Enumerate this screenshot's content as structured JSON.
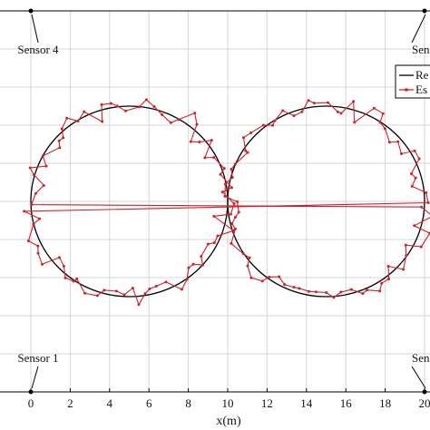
{
  "chart_data": {
    "type": "line",
    "title": "",
    "xlabel": "x(m)",
    "ylabel": "",
    "xlim": [
      -1.5,
      20
    ],
    "ylim": [
      -10,
      10
    ],
    "x_ticks": [
      0,
      2,
      4,
      6,
      8,
      10,
      12,
      14,
      16,
      18,
      20
    ],
    "x_tick_labels": [
      "0",
      "2",
      "4",
      "6",
      "8",
      "10",
      "12",
      "14",
      "16",
      "18",
      "20"
    ],
    "y_grid": [
      -10,
      -8,
      -6,
      -4,
      -2,
      0,
      2,
      4,
      6,
      8,
      10
    ],
    "grid": true,
    "legend_position": "top-right",
    "legend": [
      "Re",
      "Es"
    ],
    "colors": {
      "reference": "#000000",
      "estimate": "#d0202a",
      "grid": "#d6d6d6",
      "axis": "#000000"
    },
    "series": [
      {
        "name": "Re",
        "kind": "figure-eight (two circles)",
        "circles": [
          {
            "center": [
              5,
              0
            ],
            "radius": 5
          },
          {
            "center": [
              15,
              0
            ],
            "radius": 5
          }
        ]
      },
      {
        "name": "Es",
        "kind": "noisy estimate along same path",
        "noise_amplitude": 0.45,
        "points_per_circle": 72
      }
    ],
    "annotations": [
      {
        "text": "Sensor 4",
        "sensor_at": [
          0,
          10
        ]
      },
      {
        "text": "Sensor 1",
        "sensor_at": [
          0,
          -10
        ]
      },
      {
        "text": "Sensor",
        "sensor_at": [
          20,
          10
        ]
      },
      {
        "text": "Sensor",
        "sensor_at": [
          20,
          -10
        ]
      }
    ]
  }
}
